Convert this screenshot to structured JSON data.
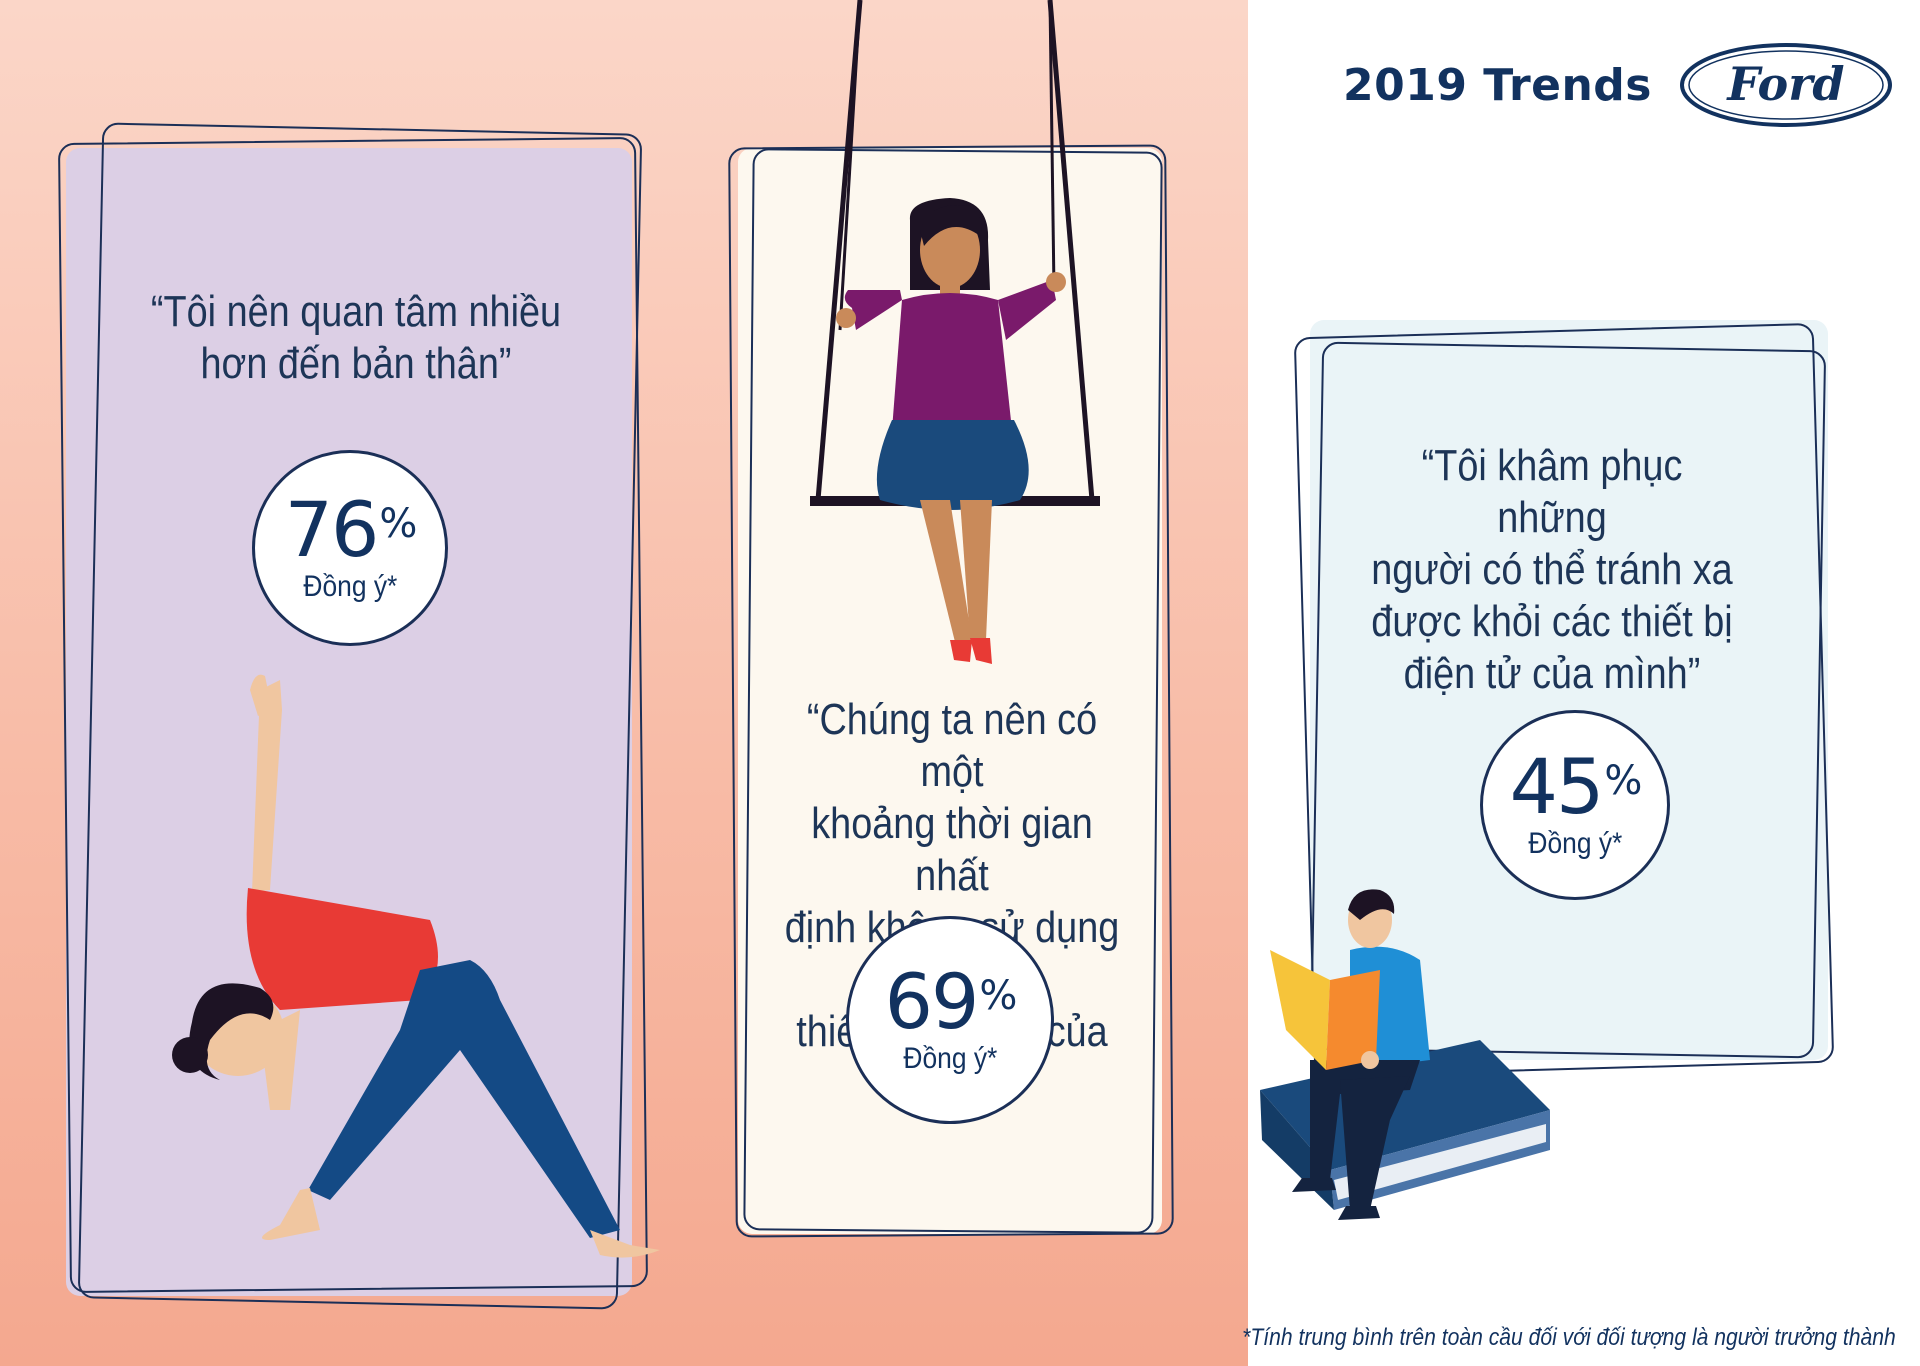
{
  "header": {
    "title": "2019 Trends",
    "logo_text": "Ford"
  },
  "panels": [
    {
      "quote": "“Tôi nên quan tâm nhiều hơn đến bản thân”",
      "quote_lines": [
        "“Tôi nên quan tâm nhiều",
        "hơn đến bản thân”"
      ],
      "stat_value": "76",
      "stat_unit": "%",
      "stat_label": "Đồng ý*",
      "illustration": "yoga-woman-icon",
      "fill": "#dccfe5"
    },
    {
      "quote_lines": [
        "“Chúng ta nên có một",
        "khoảng thời gian nhất",
        "định không sử dụng các",
        "thiết bị điện tử của mình”"
      ],
      "stat_value": "69",
      "stat_unit": "%",
      "stat_label": "Đồng ý*",
      "illustration": "swing-woman-icon",
      "fill": "#fdf8ef"
    },
    {
      "quote_lines": [
        "“Tôi khâm phục những",
        "người có thể tránh xa",
        "được khỏi các thiết bị",
        "điện tử của mình”"
      ],
      "stat_value": "45",
      "stat_unit": "%",
      "stat_label": "Đồng ý*",
      "illustration": "reading-man-icon",
      "fill": "#eaf4f7"
    }
  ],
  "footnote": "*Tính trung bình trên toàn cầu đối với đối tượng là người trưởng thành",
  "colors": {
    "navy": "#12325f",
    "bg_peach": "#f8bca7",
    "shirt_red": "#e83a35",
    "purple_top": "#7a1a6b"
  }
}
